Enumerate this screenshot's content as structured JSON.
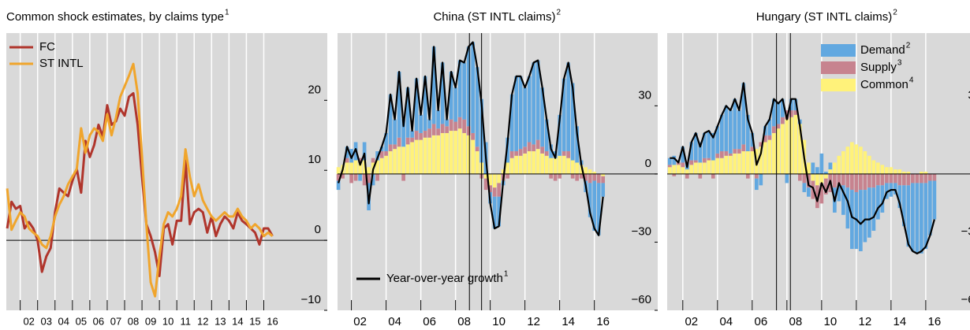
{
  "chart_data": [
    {
      "type": "line",
      "title": "Common shock estimates, by claims type",
      "title_footnote": "1",
      "x": [
        2001.25,
        2001.5,
        2001.75,
        2002,
        2002.25,
        2002.5,
        2002.75,
        2003,
        2003.25,
        2003.5,
        2003.75,
        2004,
        2004.25,
        2004.5,
        2004.75,
        2005,
        2005.25,
        2005.5,
        2005.75,
        2006,
        2006.25,
        2006.5,
        2006.75,
        2007,
        2007.25,
        2007.5,
        2007.75,
        2008,
        2008.25,
        2008.5,
        2008.75,
        2009,
        2009.25,
        2009.5,
        2009.75,
        2010,
        2010.25,
        2010.5,
        2010.75,
        2011,
        2011.25,
        2011.5,
        2011.75,
        2012,
        2012.25,
        2012.5,
        2012.75,
        2013,
        2013.25,
        2013.5,
        2013.75,
        2014,
        2014.25,
        2014.5,
        2014.75,
        2015,
        2015.25,
        2015.5,
        2015.75,
        2016,
        2016.25,
        2016.5
      ],
      "series": [
        {
          "name": "FC",
          "color": "#b0352c",
          "values": [
            1.7,
            5.5,
            4.5,
            4.9,
            1.7,
            2.6,
            1.7,
            0,
            -4.5,
            -2.3,
            -1.1,
            4,
            7.4,
            6.8,
            6.3,
            8.5,
            10.2,
            6.8,
            14.2,
            11.9,
            13.6,
            16.5,
            14.8,
            19.3,
            16.5,
            17,
            18.8,
            17.8,
            20.5,
            21,
            16.5,
            9.1,
            2.3,
            0.6,
            -1.7,
            -5.1,
            1.7,
            2.3,
            -0.6,
            2.8,
            2.8,
            11.4,
            2.3,
            4,
            4.5,
            4,
            1.1,
            3.4,
            0.6,
            2.3,
            3.4,
            2.8,
            1.7,
            4,
            2.8,
            2.3,
            1.7,
            1.1,
            -0.6,
            1.7,
            1.7,
            0.6
          ]
        },
        {
          "name": "ST INTL",
          "color": "#f0a52c",
          "values": [
            7.4,
            1.5,
            2.8,
            4,
            3.4,
            1.7,
            1.1,
            0.6,
            -0.6,
            -1.1,
            0.6,
            3.4,
            5.1,
            6.3,
            8,
            9.1,
            10.2,
            16,
            12.5,
            15,
            16,
            15.5,
            14.2,
            18,
            15,
            17.5,
            20.5,
            22,
            23.5,
            25.2,
            21,
            12,
            2.3,
            -6,
            -8,
            -2.3,
            2.3,
            4,
            3.4,
            4.5,
            6.3,
            13,
            9.1,
            6.3,
            8,
            5.7,
            4.5,
            3.4,
            2.8,
            3.4,
            4,
            3.4,
            3.4,
            4.5,
            3.4,
            2.8,
            1.7,
            2.3,
            1.7,
            0.6,
            1.1,
            0.6
          ]
        }
      ],
      "xlim": [
        2001.2,
        2019.65
      ],
      "xticks": [
        {
          "value": 2002,
          "label": "02"
        },
        {
          "value": 2003,
          "label": "03"
        },
        {
          "value": 2004,
          "label": "04"
        },
        {
          "value": 2005,
          "label": "05"
        },
        {
          "value": 2006,
          "label": "06"
        },
        {
          "value": 2007,
          "label": "07"
        },
        {
          "value": 2008,
          "label": "08"
        },
        {
          "value": 2009,
          "label": "09"
        },
        {
          "value": 2010,
          "label": "10"
        },
        {
          "value": 2011,
          "label": "11"
        },
        {
          "value": 2012,
          "label": "12"
        },
        {
          "value": 2013,
          "label": "13"
        },
        {
          "value": 2014,
          "label": "14"
        },
        {
          "value": 2015,
          "label": "15"
        },
        {
          "value": 2016,
          "label": "16"
        }
      ],
      "ylim": [
        -10,
        29.6
      ],
      "yticks": [
        {
          "value": -10,
          "label": "−10"
        },
        0,
        10,
        20
      ],
      "grid": true,
      "legend": "upper left"
    },
    {
      "type": "stacked_bar",
      "title": "China (ST INTL claims)",
      "title_footnote": "2",
      "x": [
        2001.25,
        2001.5,
        2001.75,
        2002,
        2002.25,
        2002.5,
        2002.75,
        2003,
        2003.25,
        2003.5,
        2003.75,
        2004,
        2004.25,
        2004.5,
        2004.75,
        2005,
        2005.25,
        2005.5,
        2005.75,
        2006,
        2006.25,
        2006.5,
        2006.75,
        2007,
        2007.25,
        2007.5,
        2007.75,
        2008,
        2008.25,
        2008.5,
        2008.75,
        2009,
        2009.25,
        2009.5,
        2009.75,
        2010,
        2010.25,
        2010.5,
        2010.75,
        2011,
        2011.25,
        2011.5,
        2011.75,
        2012,
        2012.25,
        2012.5,
        2012.75,
        2013,
        2013.25,
        2013.5,
        2013.75,
        2014,
        2014.25,
        2014.5,
        2014.75,
        2015,
        2015.25,
        2015.5,
        2015.75,
        2016,
        2016.25,
        2016.5
      ],
      "series": [
        {
          "color": "#62a8e0",
          "values": [
            -4,
            0,
            5,
            6,
            8,
            -3,
            8,
            -12,
            -5,
            4,
            2,
            8,
            22,
            11,
            29,
            12,
            22,
            3,
            23,
            8,
            24,
            4,
            34,
            8,
            27,
            3,
            21,
            15,
            25,
            25,
            35,
            40,
            35,
            28,
            14,
            -5,
            -14,
            -13,
            -2,
            11,
            25,
            33,
            32,
            26,
            29,
            36,
            35,
            26,
            14,
            6,
            3,
            18,
            32,
            39,
            34,
            16,
            2,
            -5,
            -15,
            -22,
            -23,
            -6
          ]
        },
        {
          "color": "#c7838f",
          "values": [
            -3,
            -2,
            2,
            -4,
            -3,
            2,
            -5,
            -4,
            2,
            -3,
            3,
            2,
            3,
            2,
            4,
            -3,
            3,
            2,
            4,
            3,
            3,
            4,
            5,
            3,
            4,
            3,
            5,
            4,
            5,
            6,
            4,
            3,
            2,
            -2,
            -5,
            -3,
            -4,
            -6,
            -3,
            -2,
            3,
            2,
            3,
            3,
            4,
            3,
            4,
            3,
            2,
            -2,
            -3,
            -2,
            2,
            3,
            -2,
            -3,
            -2,
            -3,
            -4,
            -3,
            -4,
            -3
          ]
        },
        {
          "color": "#fff27a",
          "values": [
            3,
            4,
            5,
            5,
            6,
            5,
            6,
            3,
            5,
            6,
            7,
            8,
            10,
            11,
            12,
            12,
            13,
            14,
            15,
            15,
            16,
            16,
            17,
            17,
            18,
            18,
            19,
            19,
            20,
            18,
            17,
            15,
            10,
            5,
            -2,
            -5,
            -6,
            -4,
            2,
            5,
            7,
            8,
            8,
            9,
            10,
            10,
            11,
            9,
            8,
            7,
            7,
            8,
            8,
            7,
            6,
            5,
            4,
            3,
            2,
            1,
            0,
            -1
          ]
        },
        {
          "type": "line",
          "name": "Year-over-year growth",
          "footnote": "1",
          "color": "#000000",
          "values": [
            -4,
            2,
            12,
            7,
            11,
            4,
            9,
            -13,
            2,
            7,
            12,
            18,
            35,
            24,
            45,
            21,
            38,
            19,
            42,
            26,
            43,
            24,
            56,
            28,
            49,
            24,
            45,
            38,
            50,
            49,
            56,
            58,
            47,
            31,
            7,
            -13,
            -24,
            -23,
            -3,
            14,
            35,
            43,
            43,
            38,
            43,
            49,
            50,
            38,
            24,
            11,
            7,
            24,
            42,
            49,
            38,
            18,
            4,
            -5,
            -17,
            -24,
            -27,
            -10
          ]
        }
      ],
      "vlines": [
        2008.8,
        2009.5
      ],
      "xlim": [
        2001.2,
        2019.65
      ],
      "xticks": [
        {
          "value": 2002,
          "label": "02"
        },
        {
          "value": 2004,
          "label": "04"
        },
        {
          "value": 2006,
          "label": "06"
        },
        {
          "value": 2008,
          "label": "08"
        },
        {
          "value": 2010,
          "label": "10"
        },
        {
          "value": 2012,
          "label": "12"
        },
        {
          "value": 2014,
          "label": "14"
        },
        {
          "value": 2016,
          "label": "16"
        }
      ],
      "ylim": [
        -60,
        62
      ],
      "yticks": [
        {
          "value": -60,
          "label": "−60"
        },
        {
          "value": -30,
          "label": "−30"
        },
        0,
        30
      ],
      "grid": true,
      "legend": "lower left"
    },
    {
      "type": "stacked_bar",
      "title": "Hungary (ST INTL claims)",
      "title_footnote": "2",
      "x": [
        2001.25,
        2001.5,
        2001.75,
        2002,
        2002.25,
        2002.5,
        2002.75,
        2003,
        2003.25,
        2003.5,
        2003.75,
        2004,
        2004.25,
        2004.5,
        2004.75,
        2005,
        2005.25,
        2005.5,
        2005.75,
        2006,
        2006.25,
        2006.5,
        2006.75,
        2007,
        2007.25,
        2007.5,
        2007.75,
        2008,
        2008.25,
        2008.5,
        2008.75,
        2009,
        2009.25,
        2009.5,
        2009.75,
        2010,
        2010.25,
        2010.5,
        2010.75,
        2011,
        2011.25,
        2011.5,
        2011.75,
        2012,
        2012.25,
        2012.5,
        2012.75,
        2013,
        2013.25,
        2013.5,
        2013.75,
        2014,
        2014.25,
        2014.5,
        2014.75,
        2015,
        2015.25,
        2015.5,
        2015.75,
        2016,
        2016.25,
        2016.5
      ],
      "series": [
        {
          "name": "Demand",
          "footnote": "2",
          "color": "#62a8e0",
          "values": [
            3,
            4,
            0,
            7,
            3,
            8,
            12,
            9,
            11,
            12,
            12,
            12,
            16,
            20,
            19,
            22,
            17,
            27,
            16,
            6,
            -5,
            -5,
            4,
            7,
            12,
            9,
            8,
            -4,
            5,
            5,
            2,
            -4,
            -4,
            5,
            3,
            9,
            1,
            3,
            -11,
            -7,
            -13,
            -18,
            -26,
            -25,
            -27,
            -23,
            -22,
            -19,
            -15,
            -12,
            -7,
            -6,
            -5,
            -10,
            -18,
            -27,
            -30,
            -31,
            -31,
            -29,
            -24,
            -17
          ]
        },
        {
          "name": "Supply",
          "footnote": "3",
          "color": "#c7838f",
          "values": [
            1,
            -1,
            1,
            2,
            -2,
            2,
            1,
            -2,
            2,
            1,
            -2,
            2,
            3,
            2,
            1,
            2,
            2,
            3,
            -2,
            2,
            -2,
            2,
            3,
            2,
            3,
            2,
            3,
            4,
            3,
            2,
            -3,
            -4,
            -6,
            -8,
            -10,
            -9,
            -7,
            -8,
            -6,
            -5,
            -5,
            -6,
            -7,
            -8,
            -7,
            -7,
            -6,
            -6,
            -5,
            -5,
            -4,
            -4,
            -4,
            -5,
            -5,
            -5,
            -4,
            -4,
            -4,
            -4,
            -3,
            -3
          ]
        },
        {
          "name": "Common",
          "footnote": "4",
          "color": "#fff27a",
          "values": [
            3,
            4,
            4,
            3,
            2,
            4,
            5,
            5,
            5,
            6,
            6,
            7,
            7,
            8,
            8,
            9,
            9,
            10,
            10,
            10,
            11,
            12,
            14,
            15,
            18,
            20,
            22,
            24,
            25,
            26,
            22,
            15,
            5,
            -3,
            -5,
            -4,
            -2,
            2,
            5,
            8,
            10,
            12,
            14,
            13,
            12,
            10,
            8,
            6,
            5,
            4,
            3,
            3,
            2,
            2,
            1,
            1,
            0,
            0,
            1,
            1,
            0,
            0
          ]
        },
        {
          "type": "line",
          "color": "#000000",
          "values": [
            7,
            7,
            5,
            12,
            3,
            14,
            18,
            12,
            18,
            19,
            16,
            21,
            26,
            30,
            28,
            33,
            28,
            40,
            24,
            18,
            4,
            9,
            21,
            24,
            33,
            31,
            33,
            24,
            33,
            33,
            21,
            7,
            -5,
            -6,
            -12,
            -4,
            -8,
            -3,
            -12,
            -4,
            -8,
            -12,
            -19,
            -20,
            -22,
            -20,
            -20,
            -19,
            -15,
            -13,
            -8,
            -7,
            -7,
            -13,
            -22,
            -31,
            -34,
            -35,
            -34,
            -32,
            -27,
            -20
          ]
        }
      ],
      "vlines": [
        2007.4,
        2008.2
      ],
      "xlim": [
        2001.1,
        2019.55
      ],
      "xticks": [
        {
          "value": 2002,
          "label": "02"
        },
        {
          "value": 2004,
          "label": "04"
        },
        {
          "value": 2006,
          "label": "06"
        },
        {
          "value": 2008,
          "label": "08"
        },
        {
          "value": 2010,
          "label": "10"
        },
        {
          "value": 2012,
          "label": "12"
        },
        {
          "value": 2014,
          "label": "14"
        },
        {
          "value": 2016,
          "label": "16"
        }
      ],
      "ylim": [
        -60,
        62
      ],
      "yticks": [
        {
          "value": -60,
          "label": "−60"
        },
        {
          "value": -30,
          "label": "−30"
        },
        0,
        30
      ],
      "grid": true,
      "legend": "upper right"
    }
  ]
}
